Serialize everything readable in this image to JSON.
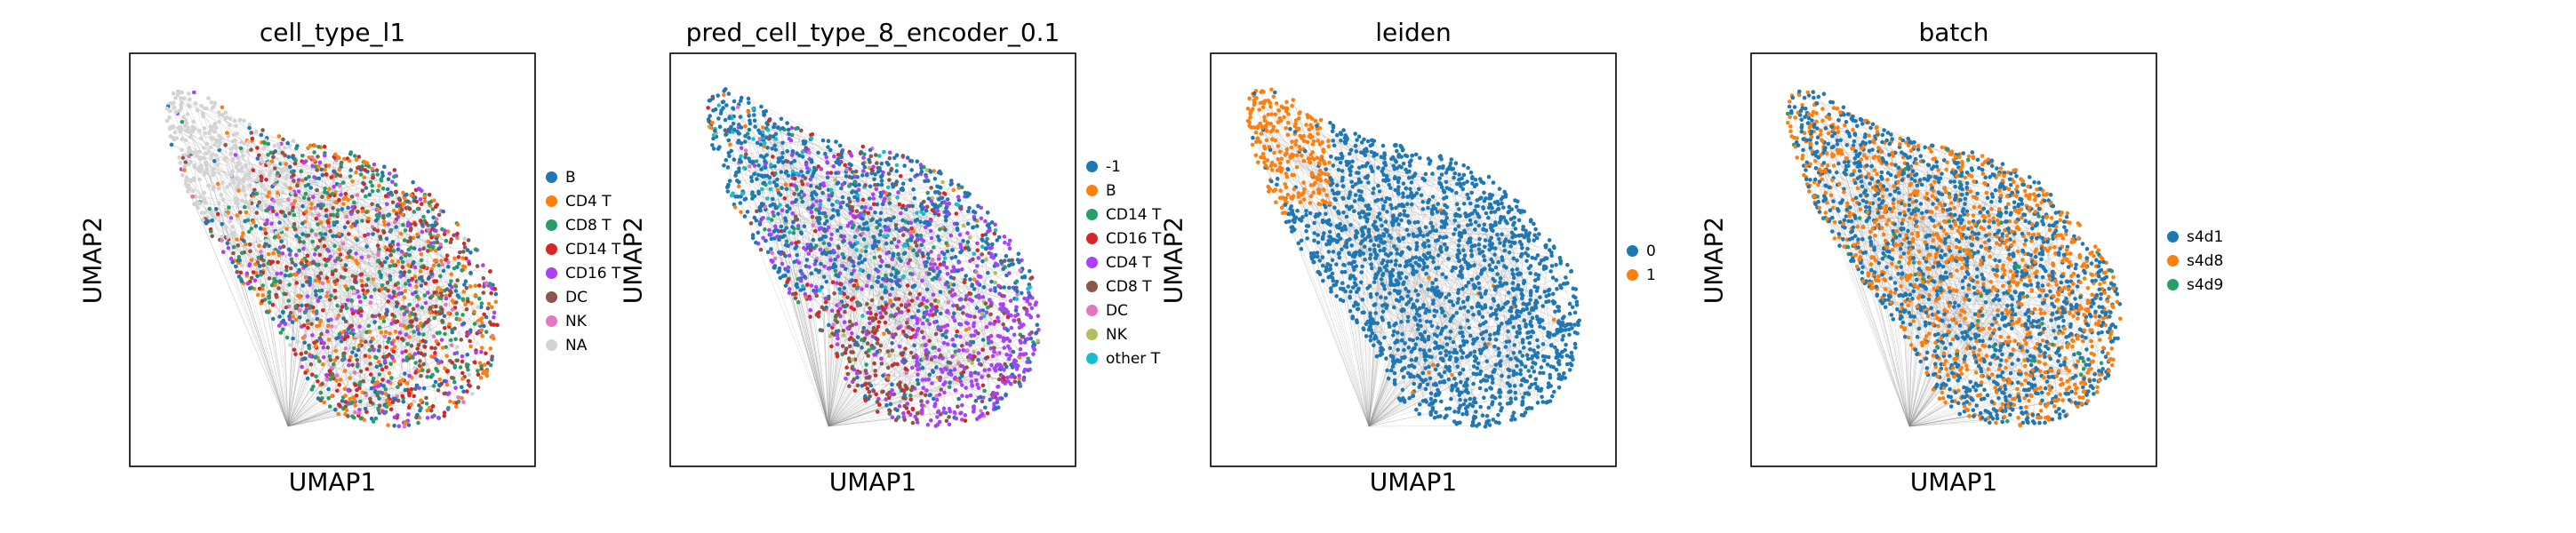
{
  "figure": {
    "panels": [
      {
        "title": "cell_type_l1",
        "xlabel": "UMAP1",
        "ylabel": "UMAP2",
        "legend_title": "",
        "legend": [
          {
            "label": "B",
            "color": "#1f77b4"
          },
          {
            "label": "CD4 T",
            "color": "#ff7f0e"
          },
          {
            "label": "CD8 T",
            "color": "#279e68"
          },
          {
            "label": "CD14 T",
            "color": "#d62728"
          },
          {
            "label": "CD16 T",
            "color": "#aa40fc"
          },
          {
            "label": "DC",
            "color": "#8c564b"
          },
          {
            "label": "NK",
            "color": "#e377c2"
          },
          {
            "label": "NA",
            "color": "#d3d3d3"
          }
        ]
      },
      {
        "title": "pred_cell_type_8_encoder_0.1",
        "xlabel": "UMAP1",
        "ylabel": "UMAP2",
        "legend": [
          {
            "label": "-1",
            "color": "#1f77b4"
          },
          {
            "label": "B",
            "color": "#ff7f0e"
          },
          {
            "label": "CD14 T",
            "color": "#279e68"
          },
          {
            "label": "CD16 T",
            "color": "#d62728"
          },
          {
            "label": "CD4 T",
            "color": "#aa40fc"
          },
          {
            "label": "CD8 T",
            "color": "#8c564b"
          },
          {
            "label": "DC",
            "color": "#e377c2"
          },
          {
            "label": "NK",
            "color": "#b5bd61"
          },
          {
            "label": "other T",
            "color": "#17becf"
          }
        ]
      },
      {
        "title": "leiden",
        "xlabel": "UMAP1",
        "ylabel": "UMAP2",
        "legend": [
          {
            "label": "0",
            "color": "#1f77b4"
          },
          {
            "label": "1",
            "color": "#ff7f0e"
          }
        ]
      },
      {
        "title": "batch",
        "xlabel": "UMAP1",
        "ylabel": "UMAP2",
        "legend": [
          {
            "label": "s4d1",
            "color": "#1f77b4"
          },
          {
            "label": "s4d8",
            "color": "#ff7f0e"
          },
          {
            "label": "s4d9",
            "color": "#279e68"
          }
        ]
      }
    ]
  },
  "chart_data": [
    {
      "type": "scatter",
      "title": "cell_type_l1",
      "xlabel": "UMAP1",
      "ylabel": "UMAP2",
      "grid": false,
      "ticks": false,
      "legend_position": "right",
      "edges_color": "#9a9a9a",
      "categories": [
        "B",
        "CD4 T",
        "CD8 T",
        "CD14 T",
        "CD16 T",
        "DC",
        "NK",
        "NA"
      ],
      "colors": [
        "#1f77b4",
        "#ff7f0e",
        "#279e68",
        "#d62728",
        "#aa40fc",
        "#8c564b",
        "#e377c2",
        "#d3d3d3"
      ],
      "distribution": "NA concentrated in upper-left lobe; remaining categories intermixed across the main body"
    },
    {
      "type": "scatter",
      "title": "pred_cell_type_8_encoder_0.1",
      "xlabel": "UMAP1",
      "ylabel": "UMAP2",
      "grid": false,
      "ticks": false,
      "legend_position": "right",
      "edges_color": "#9a9a9a",
      "categories": [
        "-1",
        "B",
        "CD14 T",
        "CD16 T",
        "CD4 T",
        "CD8 T",
        "DC",
        "NK",
        "other T"
      ],
      "colors": [
        "#1f77b4",
        "#ff7f0e",
        "#279e68",
        "#d62728",
        "#aa40fc",
        "#8c564b",
        "#e377c2",
        "#b5bd61",
        "#17becf"
      ],
      "distribution": "-1 dominant in upper region; CD4 T dominant in lower-right; CD8 T and CD16 T in lower-left"
    },
    {
      "type": "scatter",
      "title": "leiden",
      "xlabel": "UMAP1",
      "ylabel": "UMAP2",
      "grid": false,
      "ticks": false,
      "legend_position": "right",
      "edges_color": "#9a9a9a",
      "categories": [
        "0",
        "1"
      ],
      "colors": [
        "#1f77b4",
        "#ff7f0e"
      ],
      "distribution": "cluster 1 occupies upper-left lobe; cluster 0 occupies main body"
    },
    {
      "type": "scatter",
      "title": "batch",
      "xlabel": "UMAP1",
      "ylabel": "UMAP2",
      "grid": false,
      "ticks": false,
      "legend_position": "right",
      "edges_color": "#9a9a9a",
      "categories": [
        "s4d1",
        "s4d8",
        "s4d9"
      ],
      "colors": [
        "#1f77b4",
        "#ff7f0e",
        "#279e68"
      ],
      "distribution": "s4d1 and s4d8 evenly intermixed across the whole embedding; s4d9 sparse"
    }
  ]
}
